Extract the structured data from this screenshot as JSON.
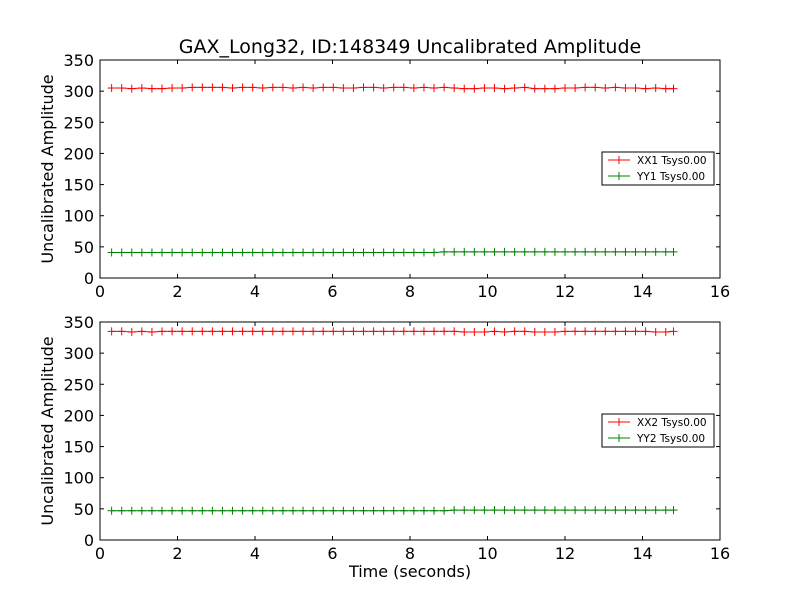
{
  "title": "GAX_Long32, ID:148349 Uncalibrated Amplitude",
  "chart_data": [
    {
      "type": "line",
      "ylabel": "Uncalibrated Amplitude",
      "xlabel": "",
      "xlim": [
        0,
        16
      ],
      "ylim": [
        0,
        350
      ],
      "xticks": [
        0,
        2,
        4,
        6,
        8,
        10,
        12,
        14,
        16
      ],
      "yticks": [
        0,
        50,
        100,
        150,
        200,
        250,
        300,
        350
      ],
      "legend_position": "center-right",
      "series": [
        {
          "name": "XX1 Tsys0.00",
          "color": "#ff0000",
          "x": [
            0.3,
            0.56,
            0.82,
            1.08,
            1.34,
            1.6,
            1.86,
            2.12,
            2.38,
            2.64,
            2.9,
            3.16,
            3.42,
            3.68,
            3.94,
            4.2,
            4.46,
            4.72,
            4.98,
            5.24,
            5.5,
            5.76,
            6.02,
            6.28,
            6.54,
            6.8,
            7.06,
            7.32,
            7.58,
            7.84,
            8.1,
            8.36,
            8.62,
            8.88,
            9.14,
            9.4,
            9.66,
            9.92,
            10.18,
            10.44,
            10.7,
            10.96,
            11.22,
            11.48,
            11.74,
            12.0,
            12.26,
            12.52,
            12.78,
            13.04,
            13.3,
            13.56,
            13.82,
            14.08,
            14.34,
            14.6,
            14.8
          ],
          "values": [
            305,
            305,
            304,
            305,
            304,
            304,
            305,
            305,
            306,
            306,
            306,
            306,
            305,
            306,
            306,
            305,
            306,
            306,
            305,
            306,
            305,
            306,
            306,
            305,
            305,
            306,
            306,
            305,
            306,
            306,
            305,
            306,
            305,
            306,
            305,
            304,
            304,
            305,
            305,
            304,
            305,
            306,
            304,
            304,
            304,
            305,
            305,
            306,
            306,
            305,
            306,
            305,
            305,
            304,
            305,
            304,
            304
          ]
        },
        {
          "name": "YY1 Tsys0.00",
          "color": "#008000",
          "x": [
            0.3,
            0.56,
            0.82,
            1.08,
            1.34,
            1.6,
            1.86,
            2.12,
            2.38,
            2.64,
            2.9,
            3.16,
            3.42,
            3.68,
            3.94,
            4.2,
            4.46,
            4.72,
            4.98,
            5.24,
            5.5,
            5.76,
            6.02,
            6.28,
            6.54,
            6.8,
            7.06,
            7.32,
            7.58,
            7.84,
            8.1,
            8.36,
            8.62,
            8.88,
            9.14,
            9.4,
            9.66,
            9.92,
            10.18,
            10.44,
            10.7,
            10.96,
            11.22,
            11.48,
            11.74,
            12.0,
            12.26,
            12.52,
            12.78,
            13.04,
            13.3,
            13.56,
            13.82,
            14.08,
            14.34,
            14.6,
            14.8
          ],
          "values": [
            41,
            41,
            41,
            41,
            41,
            41,
            41,
            41,
            41,
            41,
            41,
            41,
            41,
            41,
            41,
            41,
            41,
            41,
            41,
            41,
            41,
            41,
            41,
            41,
            41,
            41,
            41,
            41,
            41,
            41,
            41,
            41,
            41,
            42,
            42,
            42,
            42,
            42,
            42,
            42,
            42,
            42,
            42,
            42,
            42,
            42,
            42,
            42,
            42,
            42,
            42,
            42,
            42,
            42,
            42,
            42,
            42
          ]
        }
      ]
    },
    {
      "type": "line",
      "ylabel": "Uncalibrated Amplitude",
      "xlabel": "Time (seconds)",
      "xlim": [
        0,
        16
      ],
      "ylim": [
        0,
        350
      ],
      "xticks": [
        0,
        2,
        4,
        6,
        8,
        10,
        12,
        14,
        16
      ],
      "yticks": [
        0,
        50,
        100,
        150,
        200,
        250,
        300,
        350
      ],
      "legend_position": "center-right",
      "series": [
        {
          "name": "XX2 Tsys0.00",
          "color": "#ff0000",
          "x": [
            0.3,
            0.56,
            0.82,
            1.08,
            1.34,
            1.6,
            1.86,
            2.12,
            2.38,
            2.64,
            2.9,
            3.16,
            3.42,
            3.68,
            3.94,
            4.2,
            4.46,
            4.72,
            4.98,
            5.24,
            5.5,
            5.76,
            6.02,
            6.28,
            6.54,
            6.8,
            7.06,
            7.32,
            7.58,
            7.84,
            8.1,
            8.36,
            8.62,
            8.88,
            9.14,
            9.4,
            9.66,
            9.92,
            10.18,
            10.44,
            10.7,
            10.96,
            11.22,
            11.48,
            11.74,
            12.0,
            12.26,
            12.52,
            12.78,
            13.04,
            13.3,
            13.56,
            13.82,
            14.08,
            14.34,
            14.6,
            14.8
          ],
          "values": [
            335,
            335,
            334,
            335,
            334,
            335,
            335,
            335,
            335,
            335,
            335,
            335,
            335,
            335,
            335,
            335,
            335,
            335,
            335,
            335,
            335,
            335,
            335,
            335,
            335,
            335,
            335,
            335,
            335,
            335,
            335,
            335,
            335,
            335,
            335,
            334,
            334,
            334,
            335,
            334,
            335,
            335,
            334,
            334,
            334,
            335,
            335,
            335,
            335,
            335,
            335,
            335,
            335,
            335,
            334,
            334,
            335
          ]
        },
        {
          "name": "YY2 Tsys0.00",
          "color": "#008000",
          "x": [
            0.3,
            0.56,
            0.82,
            1.08,
            1.34,
            1.6,
            1.86,
            2.12,
            2.38,
            2.64,
            2.9,
            3.16,
            3.42,
            3.68,
            3.94,
            4.2,
            4.46,
            4.72,
            4.98,
            5.24,
            5.5,
            5.76,
            6.02,
            6.28,
            6.54,
            6.8,
            7.06,
            7.32,
            7.58,
            7.84,
            8.1,
            8.36,
            8.62,
            8.88,
            9.14,
            9.4,
            9.66,
            9.92,
            10.18,
            10.44,
            10.7,
            10.96,
            11.22,
            11.48,
            11.74,
            12.0,
            12.26,
            12.52,
            12.78,
            13.04,
            13.3,
            13.56,
            13.82,
            14.08,
            14.34,
            14.6,
            14.8
          ],
          "values": [
            47,
            47,
            47,
            47,
            47,
            47,
            47,
            47,
            47,
            47,
            47,
            47,
            47,
            47,
            47,
            47,
            47,
            47,
            47,
            47,
            47,
            47,
            47,
            47,
            47,
            47,
            47,
            47,
            47,
            47,
            47,
            47,
            47,
            47,
            48,
            48,
            48,
            48,
            48,
            48,
            48,
            48,
            48,
            48,
            48,
            48,
            48,
            48,
            48,
            48,
            48,
            48,
            48,
            48,
            48,
            48,
            48
          ]
        }
      ]
    }
  ]
}
